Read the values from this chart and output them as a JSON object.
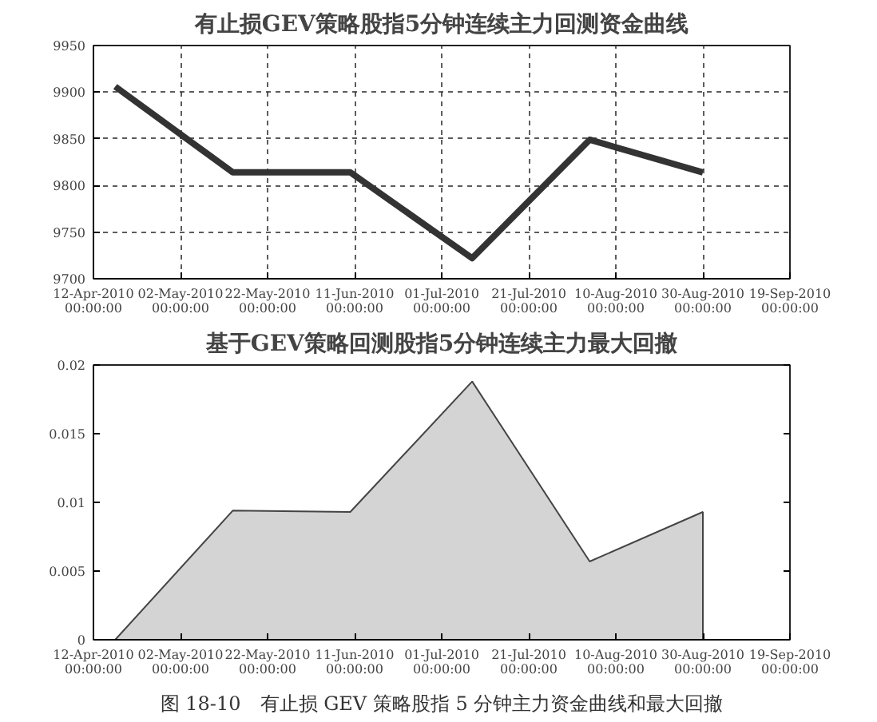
{
  "chart_data": [
    {
      "type": "line",
      "title": "有止损GEV策略股指5分钟连续主力回测资金曲线",
      "x": [
        "2010-04-17",
        "2010-05-14",
        "2010-06-10",
        "2010-07-08",
        "2010-08-04",
        "2010-08-30"
      ],
      "series": [
        {
          "color": "#333333",
          "values": [
            9906,
            9814,
            9814,
            9722,
            9849,
            9814
          ]
        }
      ],
      "xlim": [
        "2010-04-12",
        "2010-09-19"
      ],
      "xticks": [
        {
          "value": "2010-04-12",
          "label": "12-Apr-2010 00:00:00"
        },
        {
          "value": "2010-05-02",
          "label": "02-May-2010 00:00:00"
        },
        {
          "value": "2010-05-22",
          "label": "22-May-2010 00:00:00"
        },
        {
          "value": "2010-06-11",
          "label": "11-Jun-2010 00:00:00"
        },
        {
          "value": "2010-07-01",
          "label": "01-Jul-2010 00:00:00"
        },
        {
          "value": "2010-07-21",
          "label": "21-Jul-2010 00:00:00"
        },
        {
          "value": "2010-08-10",
          "label": "10-Aug-2010 00:00:00"
        },
        {
          "value": "2010-08-30",
          "label": "30-Aug-2010 00:00:00"
        },
        {
          "value": "2010-09-19",
          "label": "19-Sep-2010 00:00:00"
        }
      ],
      "ylim": [
        9700,
        9950
      ],
      "yticks": [
        9700,
        9750,
        9800,
        9850,
        9900,
        9950
      ],
      "grid": true,
      "line_style": "solid"
    },
    {
      "type": "area",
      "title": "基于GEV策略回测股指5分钟连续主力最大回撤",
      "x": [
        "2010-04-17",
        "2010-05-14",
        "2010-06-10",
        "2010-07-08",
        "2010-08-04",
        "2010-08-30"
      ],
      "series": [
        {
          "color": "#d4d4d4",
          "values": [
            0,
            0.0094,
            0.0093,
            0.0188,
            0.0057,
            0.0093
          ]
        }
      ],
      "xlim": [
        "2010-04-12",
        "2010-09-19"
      ],
      "xticks": [
        {
          "value": "2010-04-12",
          "label": "12-Apr-2010 00:00:00"
        },
        {
          "value": "2010-05-02",
          "label": "02-May-2010 00:00:00"
        },
        {
          "value": "2010-05-22",
          "label": "22-May-2010 00:00:00"
        },
        {
          "value": "2010-06-11",
          "label": "11-Jun-2010 00:00:00"
        },
        {
          "value": "2010-07-01",
          "label": "01-Jul-2010 00:00:00"
        },
        {
          "value": "2010-07-21",
          "label": "21-Jul-2010 00:00:00"
        },
        {
          "value": "2010-08-10",
          "label": "10-Aug-2010 00:00:00"
        },
        {
          "value": "2010-08-30",
          "label": "30-Aug-2010 00:00:00"
        },
        {
          "value": "2010-09-19",
          "label": "19-Sep-2010 00:00:00"
        }
      ],
      "ylim": [
        0,
        0.02
      ],
      "yticks": [
        0,
        0.005,
        0.01,
        0.015,
        0.02
      ],
      "grid": false,
      "annotations": [
        "图 18-10　有止损 GEV 策略股指 5 分钟主力资金曲线和最大回撤"
      ]
    }
  ]
}
